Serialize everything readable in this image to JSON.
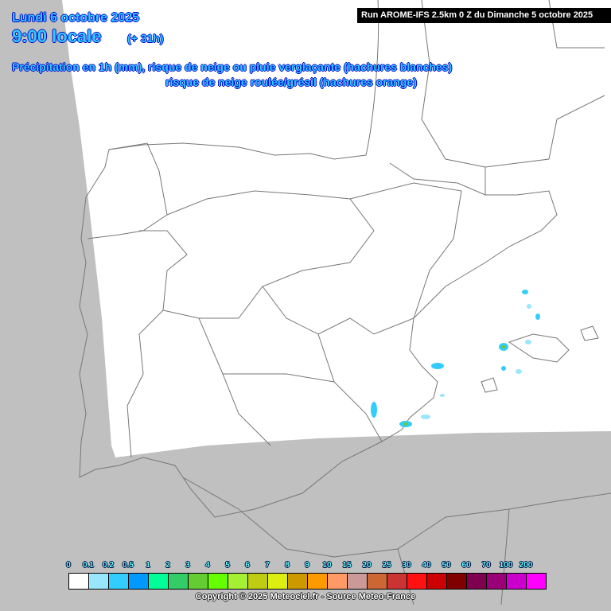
{
  "header": {
    "date": "Lundi 6 octobre 2025",
    "time": "9:00 locale",
    "lead": "(+ 31h)",
    "title_line1": "Précipitation en 1h (mm), risque de neige ou pluie verglaçante (hachures blanches)",
    "title_line2": "risque de neige roulée/grésil (hachures orange)",
    "run": "Run AROME-IFS 2.5km 0 Z du Dimanche 5 octobre 2025"
  },
  "legend": {
    "labels": [
      "0",
      "0.1",
      "0.2",
      "0.5",
      "1",
      "2",
      "3",
      "4",
      "5",
      "6",
      "7",
      "8",
      "9",
      "10",
      "15",
      "20",
      "25",
      "30",
      "40",
      "50",
      "60",
      "70",
      "100",
      "200"
    ],
    "colors": [
      "#ffffff",
      "#99e6ff",
      "#33ccff",
      "#0099ff",
      "#00ff99",
      "#33cc66",
      "#66cc33",
      "#66ff00",
      "#a6f033",
      "#bfcc11",
      "#ddee11",
      "#cc9900",
      "#ff9900",
      "#ff9966",
      "#cc9999",
      "#cc6633",
      "#cc3333",
      "#ff1111",
      "#cc0000",
      "#800000",
      "#800050",
      "#990077",
      "#cc00cc",
      "#ff00ff"
    ]
  },
  "copyright": "Copyright © 2025 Meteociel.fr - Source Meteo-France",
  "map": {
    "outside_domain_color": "#c0c0c0",
    "domain_color": "#ffffff",
    "border_color": "#777777"
  }
}
